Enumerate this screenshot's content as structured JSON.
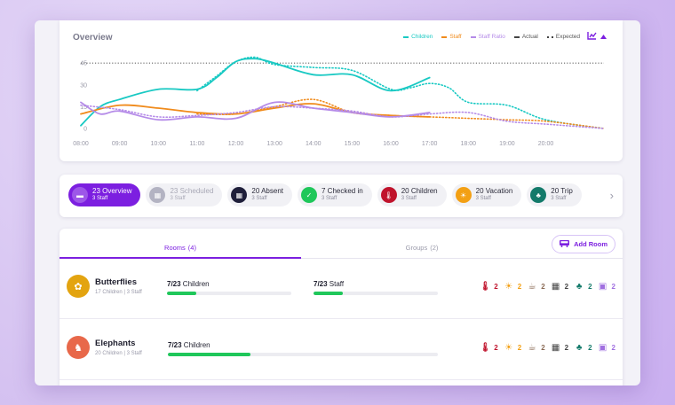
{
  "overview": {
    "title": "Overview",
    "legend": [
      {
        "label": "Children",
        "color": "#19c9c3"
      },
      {
        "label": "Staff",
        "color": "#f08b1c"
      },
      {
        "label": "Staff Ratio",
        "color": "#b58be8"
      },
      {
        "label": "Actual",
        "style": "solid",
        "color": "#444444"
      },
      {
        "label": "Expected",
        "style": "dotted",
        "color": "#444444"
      }
    ],
    "tools": {
      "chart_icon": "chart-icon",
      "toggle_icon": "caret-up-icon"
    }
  },
  "chart_data": {
    "type": "line",
    "x": [
      "08:00",
      "09:00",
      "10:00",
      "11:00",
      "12:00",
      "13:00",
      "14:00",
      "15:00",
      "16:00",
      "17:00",
      "18:00",
      "19:00",
      "20:00"
    ],
    "yticks": [
      0,
      15,
      30,
      45
    ],
    "ylim": [
      0,
      50
    ],
    "reference_line": 45,
    "series": [
      {
        "name": "Children",
        "style": "solid",
        "color": "#19c9c3",
        "x": [
          8,
          8.5,
          9,
          10,
          11,
          11.5,
          12,
          12.5,
          13,
          14,
          15,
          16,
          17
        ],
        "values": [
          2,
          15,
          20,
          27,
          27,
          35,
          46,
          48,
          45,
          37,
          37,
          26,
          35
        ]
      },
      {
        "name": "Children",
        "style": "dotted",
        "color": "#19c9c3",
        "x": [
          11,
          11.5,
          12,
          12.5,
          13,
          14,
          15,
          16,
          16.5,
          17,
          17.5,
          18,
          19,
          20,
          21.5
        ],
        "values": [
          26,
          36,
          46,
          49,
          44,
          42,
          40,
          27,
          28,
          31,
          28,
          18,
          16,
          6,
          0
        ]
      },
      {
        "name": "Staff",
        "style": "solid",
        "color": "#f08b1c",
        "x": [
          8,
          9,
          10,
          11,
          12,
          13,
          14,
          15,
          16,
          17
        ],
        "values": [
          10,
          16,
          14,
          11,
          10,
          14,
          17,
          11,
          9,
          8
        ]
      },
      {
        "name": "Staff",
        "style": "dotted",
        "color": "#f08b1c",
        "x": [
          11,
          12,
          13,
          14,
          15,
          16,
          17,
          18,
          19,
          20,
          21.5
        ],
        "values": [
          10,
          10,
          15,
          20,
          11,
          9,
          8,
          7,
          6,
          5,
          0
        ]
      },
      {
        "name": "Staff Ratio",
        "style": "solid",
        "color": "#b58be8",
        "x": [
          8,
          8.5,
          9,
          10,
          11,
          12,
          13,
          14,
          15,
          16,
          17
        ],
        "values": [
          18,
          10,
          12,
          6,
          8,
          7,
          18,
          14,
          11,
          8,
          11
        ]
      },
      {
        "name": "Staff Ratio",
        "style": "dotted",
        "color": "#b58be8",
        "x": [
          8,
          9,
          10,
          11,
          12,
          13,
          14,
          15,
          16,
          17,
          18,
          19,
          20,
          21.5
        ],
        "values": [
          16,
          13,
          8,
          9,
          11,
          15,
          14,
          12,
          8,
          10,
          11,
          5,
          3,
          0
        ]
      }
    ]
  },
  "statuses": [
    {
      "count": "23",
      "label": "Overview",
      "sub": "3 Staff",
      "color": "#7c1fe0",
      "icon": "overview-icon",
      "glyph": "▬",
      "active": true,
      "muted": false
    },
    {
      "count": "23",
      "label": "Scheduled",
      "sub": "3 Staff",
      "color": "#b3b3c2",
      "icon": "calendar-icon",
      "glyph": "▦",
      "active": false,
      "muted": true
    },
    {
      "count": "20",
      "label": "Absent",
      "sub": "3 Staff",
      "color": "#1f1f3a",
      "icon": "calendar-x-icon",
      "glyph": "▦",
      "active": false,
      "muted": false
    },
    {
      "count": "7",
      "label": "Checked in",
      "sub": "3 Staff",
      "color": "#1fc75a",
      "icon": "check-icon",
      "glyph": "✓",
      "active": false,
      "muted": false
    },
    {
      "count": "20",
      "label": "Children",
      "sub": "3 Staff",
      "color": "#c0132c",
      "icon": "thermometer-icon",
      "glyph": "🌡",
      "active": false,
      "muted": false
    },
    {
      "count": "20",
      "label": "Vacation",
      "sub": "3 Staff",
      "color": "#f3a014",
      "icon": "sun-icon",
      "glyph": "☀",
      "active": false,
      "muted": false
    },
    {
      "count": "20",
      "label": "Trip",
      "sub": "3 Staff",
      "color": "#137a6a",
      "icon": "tree-icon",
      "glyph": "♣",
      "active": false,
      "muted": false
    }
  ],
  "rooms_panel": {
    "tabs": [
      {
        "label": "Rooms",
        "count": "(4)"
      },
      {
        "label": "Groups",
        "count": "(2)"
      }
    ],
    "add_room_label": "Add Room",
    "rooms": [
      {
        "name": "Butterflies",
        "sub": "17 Children | 3 Staff",
        "color": "#e3a410",
        "icon": "butterfly-icon",
        "children_value": "7/23",
        "children_label": "Children",
        "children_progress": 0.3043,
        "staff_value": "7/23",
        "staff_label": "Staff",
        "staff_progress": 0.3043,
        "stats": [
          {
            "icon": "thermometer-icon",
            "glyph": "🌡",
            "value": "2",
            "color": "#c0132c"
          },
          {
            "icon": "sun-icon",
            "glyph": "☀",
            "value": "2",
            "color": "#f3a014"
          },
          {
            "icon": "coffee-icon",
            "glyph": "☕",
            "value": "2",
            "color": "#8a6a55"
          },
          {
            "icon": "calendar-icon",
            "glyph": "▦",
            "value": "2",
            "color": "#444444"
          },
          {
            "icon": "tree-icon",
            "glyph": "♣",
            "value": "2",
            "color": "#137a6a"
          },
          {
            "icon": "bus-icon",
            "glyph": "▣",
            "value": "2",
            "color": "#a06fe0"
          }
        ]
      },
      {
        "name": "Elephants",
        "sub": "20 Children | 3 Staff",
        "color": "#e8684a",
        "icon": "elephant-icon",
        "children_value": "7/23",
        "children_label": "Children",
        "children_progress": 0.3043,
        "stats": [
          {
            "icon": "thermometer-icon",
            "glyph": "🌡",
            "value": "2",
            "color": "#c0132c"
          },
          {
            "icon": "sun-icon",
            "glyph": "☀",
            "value": "2",
            "color": "#f3a014"
          },
          {
            "icon": "coffee-icon",
            "glyph": "☕",
            "value": "2",
            "color": "#8a6a55"
          },
          {
            "icon": "calendar-icon",
            "glyph": "▦",
            "value": "2",
            "color": "#444444"
          },
          {
            "icon": "tree-icon",
            "glyph": "♣",
            "value": "2",
            "color": "#137a6a"
          },
          {
            "icon": "bus-icon",
            "glyph": "▣",
            "value": "2",
            "color": "#a06fe0"
          }
        ]
      }
    ]
  }
}
